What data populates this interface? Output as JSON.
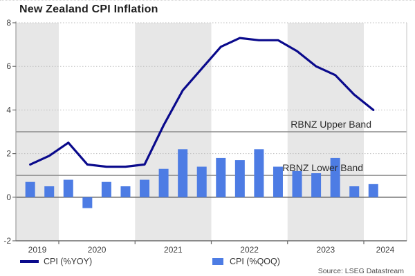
{
  "title": "New Zealand CPI Inflation",
  "source": "Source: LSEG Datastream",
  "annotations": {
    "upper": "RBNZ Upper Band",
    "lower": "RBNZ Lower Band"
  },
  "legend": [
    {
      "label": "CPI (%YOY)",
      "type": "line",
      "color": "#0a0a8c"
    },
    {
      "label": "CPI (%QOQ)",
      "type": "bar",
      "color": "#4d7ce4"
    }
  ],
  "colors": {
    "line": "#0a0a8c",
    "bar": "#4d7ce4",
    "year_shading": "#e7e7e7",
    "grid_dotted": "#bdbdbd",
    "reference_line": "#8c8c8c",
    "zero_line": "#545454",
    "axis_bottom": "#6b6b6b",
    "axis_left": "#9e9e9e",
    "axis_right": "#c4c4c4",
    "tick_label": "#3d3d3d"
  },
  "chart_data": {
    "type": "line+bar",
    "title": "New Zealand CPI Inflation",
    "xlabel": "",
    "ylabel": "",
    "ylim": [
      -2,
      8
    ],
    "y_ticks": [
      8,
      6,
      4,
      2,
      0,
      -2
    ],
    "grid_values": [
      8,
      6,
      4,
      2
    ],
    "year_labels": [
      "2019",
      "2020",
      "2021",
      "2022",
      "2023",
      "2024"
    ],
    "shaded_years": [
      2019,
      2021,
      2023
    ],
    "reference_lines": [
      {
        "label": "RBNZ Upper Band",
        "value": 3
      },
      {
        "label": "RBNZ Lower Band",
        "value": 1
      }
    ],
    "quarters": [
      "2019Q3",
      "2019Q4",
      "2020Q1",
      "2020Q2",
      "2020Q3",
      "2020Q4",
      "2021Q1",
      "2021Q2",
      "2021Q3",
      "2021Q4",
      "2022Q1",
      "2022Q2",
      "2022Q3",
      "2022Q4",
      "2023Q1",
      "2023Q2",
      "2023Q3",
      "2023Q4",
      "2024Q1"
    ],
    "series": [
      {
        "name": "CPI (%YOY)",
        "type": "line",
        "values": [
          1.5,
          1.9,
          2.5,
          1.5,
          1.4,
          1.4,
          1.5,
          3.3,
          4.9,
          5.9,
          6.9,
          7.3,
          7.2,
          7.2,
          6.7,
          6.0,
          5.6,
          4.7,
          4.0
        ]
      },
      {
        "name": "CPI (%QOQ)",
        "type": "bar",
        "values": [
          0.7,
          0.5,
          0.8,
          -0.5,
          0.7,
          0.5,
          0.8,
          1.3,
          2.2,
          1.4,
          1.8,
          1.7,
          2.2,
          1.4,
          1.2,
          1.1,
          1.8,
          0.5,
          0.6
        ]
      }
    ],
    "legend_position": "bottom",
    "grid": "dotted-horizontal"
  }
}
